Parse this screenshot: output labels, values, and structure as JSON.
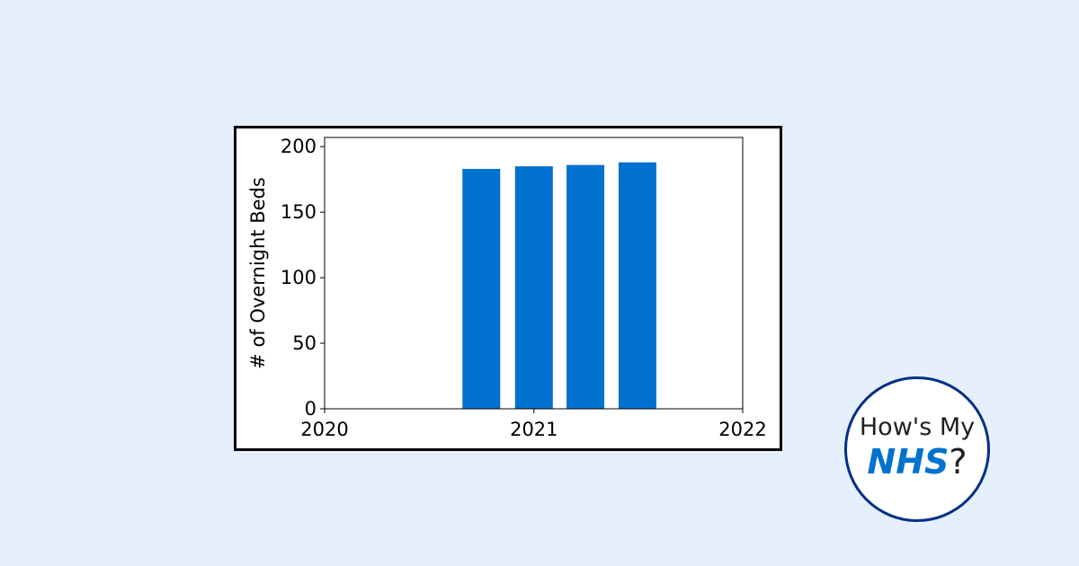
{
  "chart_data": {
    "type": "bar",
    "title": "",
    "xlabel": "",
    "ylabel": "# of Overnight Beds",
    "x_ticks": [
      "2020",
      "2021",
      "2022"
    ],
    "y_ticks": [
      "0",
      "50",
      "100",
      "150",
      "200"
    ],
    "xlim": [
      "2020-01-01",
      "2022-01-01"
    ],
    "ylim": [
      0,
      207
    ],
    "grid": false,
    "bar_color": "#0071ce",
    "bars": [
      {
        "x": "2020-10-01",
        "value": 183
      },
      {
        "x": "2021-01-01",
        "value": 185
      },
      {
        "x": "2021-04-01",
        "value": 186
      },
      {
        "x": "2021-07-01",
        "value": 188
      }
    ]
  },
  "logo": {
    "line1": "How's My",
    "brand": "NHS",
    "suffix": "?",
    "brand_color": "#0072ce",
    "ring_color": "#003087"
  }
}
